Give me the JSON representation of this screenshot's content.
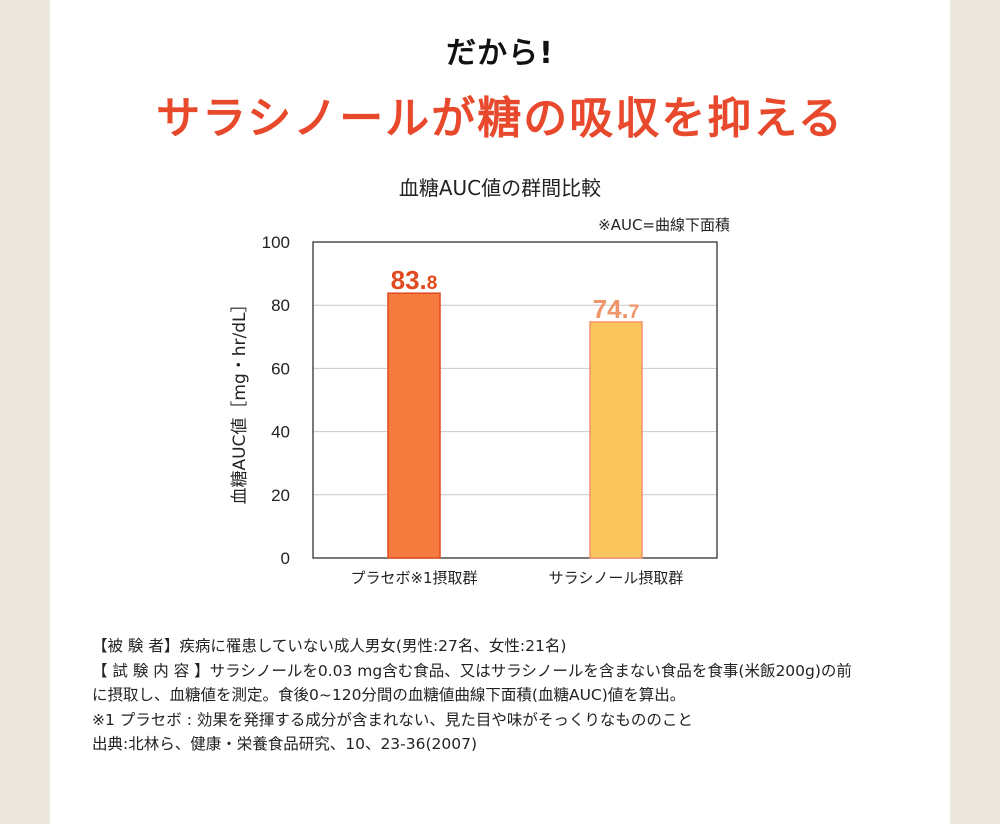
{
  "header": {
    "eyebrow": "だから!",
    "headline": "サラシノールが糖の吸収を抑える"
  },
  "chart_data": {
    "type": "bar",
    "title": "血糖AUC値の群間比較",
    "note": "※AUC=曲線下面積",
    "ylabel": "血糖AUC値［mg・hr/dL］",
    "xlabel": "",
    "ylim": [
      0,
      100
    ],
    "yticks": [
      0,
      20,
      40,
      60,
      80,
      100
    ],
    "grid": true,
    "categories": [
      "プラセボ※1摂取群",
      "サラシノール摂取群"
    ],
    "values": [
      83.8,
      74.7
    ],
    "value_labels": [
      "83.8",
      "74.7"
    ],
    "colors": [
      "#f57c3e",
      "#fcc55e"
    ],
    "label_colors": [
      "#e04a1f",
      "#f0946a"
    ]
  },
  "notes": [
    "【被 験 者】疾病に罹患していない成人男女(男性:27名、女性:21名)",
    "【 試 験 内 容 】サラシノールを0.03 mg含む食品、又はサラシノールを含まない食品を食事(米飯200g)の前",
    "に摂取し、血糖値を測定。食後0~120分間の血糖値曲線下面積(血糖AUC)値を算出。",
    "※1 プラセボ : 効果を発揮する成分が含まれない、見た目や味がそっくりなもののこと",
    "出典:北林ら、健康・栄養食品研究、10、23-36(2007)"
  ]
}
